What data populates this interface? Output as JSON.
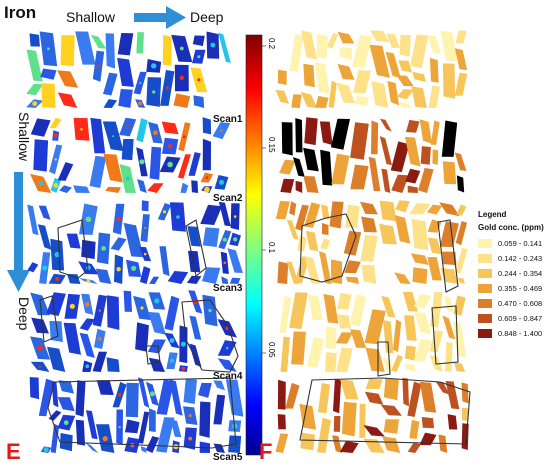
{
  "figure": {
    "title": "Iron",
    "horizontal_start": "Shallow",
    "horizontal_end": "Deep",
    "vertical_start": "Shallow",
    "vertical_end": "Deep",
    "panel_left": "E",
    "panel_right": "F",
    "scans": [
      "Scan1",
      "Scan2",
      "Scan3",
      "Scan4",
      "Scan5"
    ]
  },
  "colorbar": {
    "ticks": [
      "0.2",
      "0.15",
      "0.1",
      "0.05"
    ],
    "colormap": "jet"
  },
  "legend": {
    "title": "Legend",
    "subtitle": "Gold conc. (ppm)",
    "items": [
      {
        "label": "0.059 - 0.141",
        "color": "#fff3b0"
      },
      {
        "label": "0.142 - 0.243",
        "color": "#fde28a"
      },
      {
        "label": "0.244 - 0.354",
        "color": "#f7c65a"
      },
      {
        "label": "0.355 - 0.469",
        "color": "#eda53a"
      },
      {
        "label": "0.470 - 0.608",
        "color": "#dc7f2a"
      },
      {
        "label": "0.609 - 0.847",
        "color": "#bd5220"
      },
      {
        "label": "0.848 - 1.400",
        "color": "#8a1a12"
      }
    ]
  },
  "colors": {
    "arrow": "#2e8fd6",
    "panel_letter": "#e01b1b",
    "outline": "#333333"
  }
}
